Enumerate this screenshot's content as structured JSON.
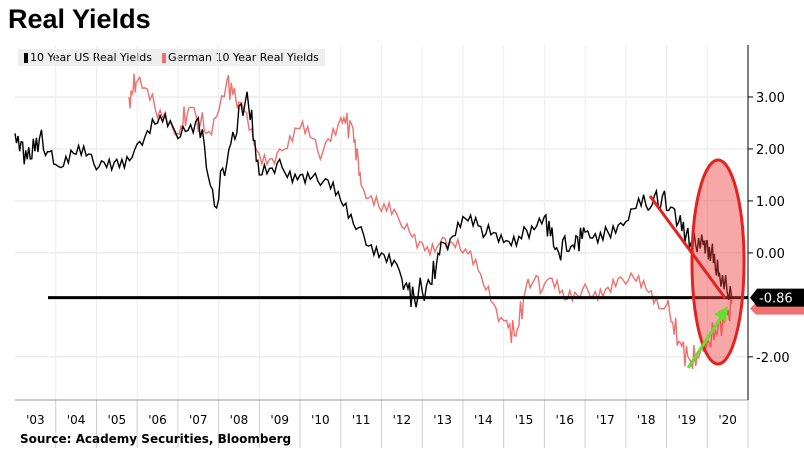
{
  "chart_data": {
    "type": "line",
    "title": "Real Yields",
    "source": "Source: Academy Securities, Bloomberg",
    "x_ticks": [
      "'03",
      "'04",
      "'05",
      "'06",
      "'07",
      "'08",
      "'09",
      "'10",
      "'11",
      "'12",
      "'13",
      "'14",
      "'15",
      "'16",
      "'17",
      "'18",
      "'19",
      "'20"
    ],
    "y_ticks": [
      "3.00",
      "2.00",
      "1.00",
      "0.00",
      "-2.00"
    ],
    "y_tick_values": [
      3,
      2,
      1,
      0,
      -2
    ],
    "ylim": [
      -2.83,
      4.0
    ],
    "xlim": [
      2003,
      2021
    ],
    "grid": true,
    "legend_position": "top-left",
    "series": [
      {
        "name": "10 Year US Real Yields",
        "color": "#000000",
        "x": [
          2003,
          2003.3,
          2003.6,
          2004,
          2004.5,
          2005,
          2005.5,
          2006,
          2006.5,
          2007,
          2007.5,
          2007.9,
          2008.3,
          2008.7,
          2009,
          2009.5,
          2010,
          2010.5,
          2011,
          2011.5,
          2012,
          2012.5,
          2012.8,
          2013.2,
          2013.5,
          2014,
          2014.5,
          2015,
          2015.5,
          2016,
          2016.3,
          2016.7,
          2017,
          2017.5,
          2018,
          2018.5,
          2018.9,
          2019.3,
          2019.6,
          2019.9,
          2020.1,
          2020.3,
          2020.6
        ],
        "y": [
          2.3,
          1.8,
          2.2,
          1.7,
          1.9,
          1.6,
          1.8,
          2.1,
          2.5,
          2.2,
          2.6,
          0.9,
          2.1,
          3.1,
          1.5,
          1.8,
          1.5,
          1.3,
          1.0,
          0.5,
          0.0,
          -0.5,
          -0.85,
          -0.6,
          0.2,
          0.7,
          0.3,
          0.2,
          0.5,
          0.7,
          0.1,
          0.15,
          0.4,
          0.5,
          0.6,
          0.9,
          1.1,
          0.6,
          0.2,
          0.15,
          0.0,
          -0.4,
          -0.86
        ]
      },
      {
        "name": "German 10 Year Real Yields",
        "color": "#f07070",
        "x": [
          2005.8,
          2006,
          2006.5,
          2007,
          2007.3,
          2007.7,
          2008.2,
          2008.5,
          2009,
          2009.5,
          2010,
          2010.5,
          2011,
          2011.3,
          2011.5,
          2012,
          2012.5,
          2013,
          2013.5,
          2014,
          2014.5,
          2015,
          2015.3,
          2015.6,
          2016,
          2016.5,
          2017,
          2017.5,
          2018,
          2018.5,
          2019,
          2019.3,
          2019.6,
          2019.9,
          2020.2,
          2020.5,
          2020.6
        ],
        "y": [
          3.0,
          3.3,
          2.6,
          2.3,
          2.8,
          2.3,
          3.3,
          2.9,
          1.9,
          2.0,
          2.4,
          1.8,
          2.6,
          2.4,
          1.3,
          0.8,
          0.5,
          0.2,
          0.3,
          0.0,
          -0.6,
          -1.3,
          -1.6,
          -0.5,
          -0.6,
          -0.9,
          -0.6,
          -0.7,
          -0.6,
          -0.7,
          -1.0,
          -1.7,
          -2.1,
          -1.9,
          -1.5,
          -1.2,
          -0.99
        ]
      }
    ],
    "annotations": {
      "reference_line_value": -0.86,
      "reference_label": "-0.86",
      "reference_color": "#000000",
      "highlight_color": "#e52222",
      "arrow_color": "#66dd33"
    }
  }
}
